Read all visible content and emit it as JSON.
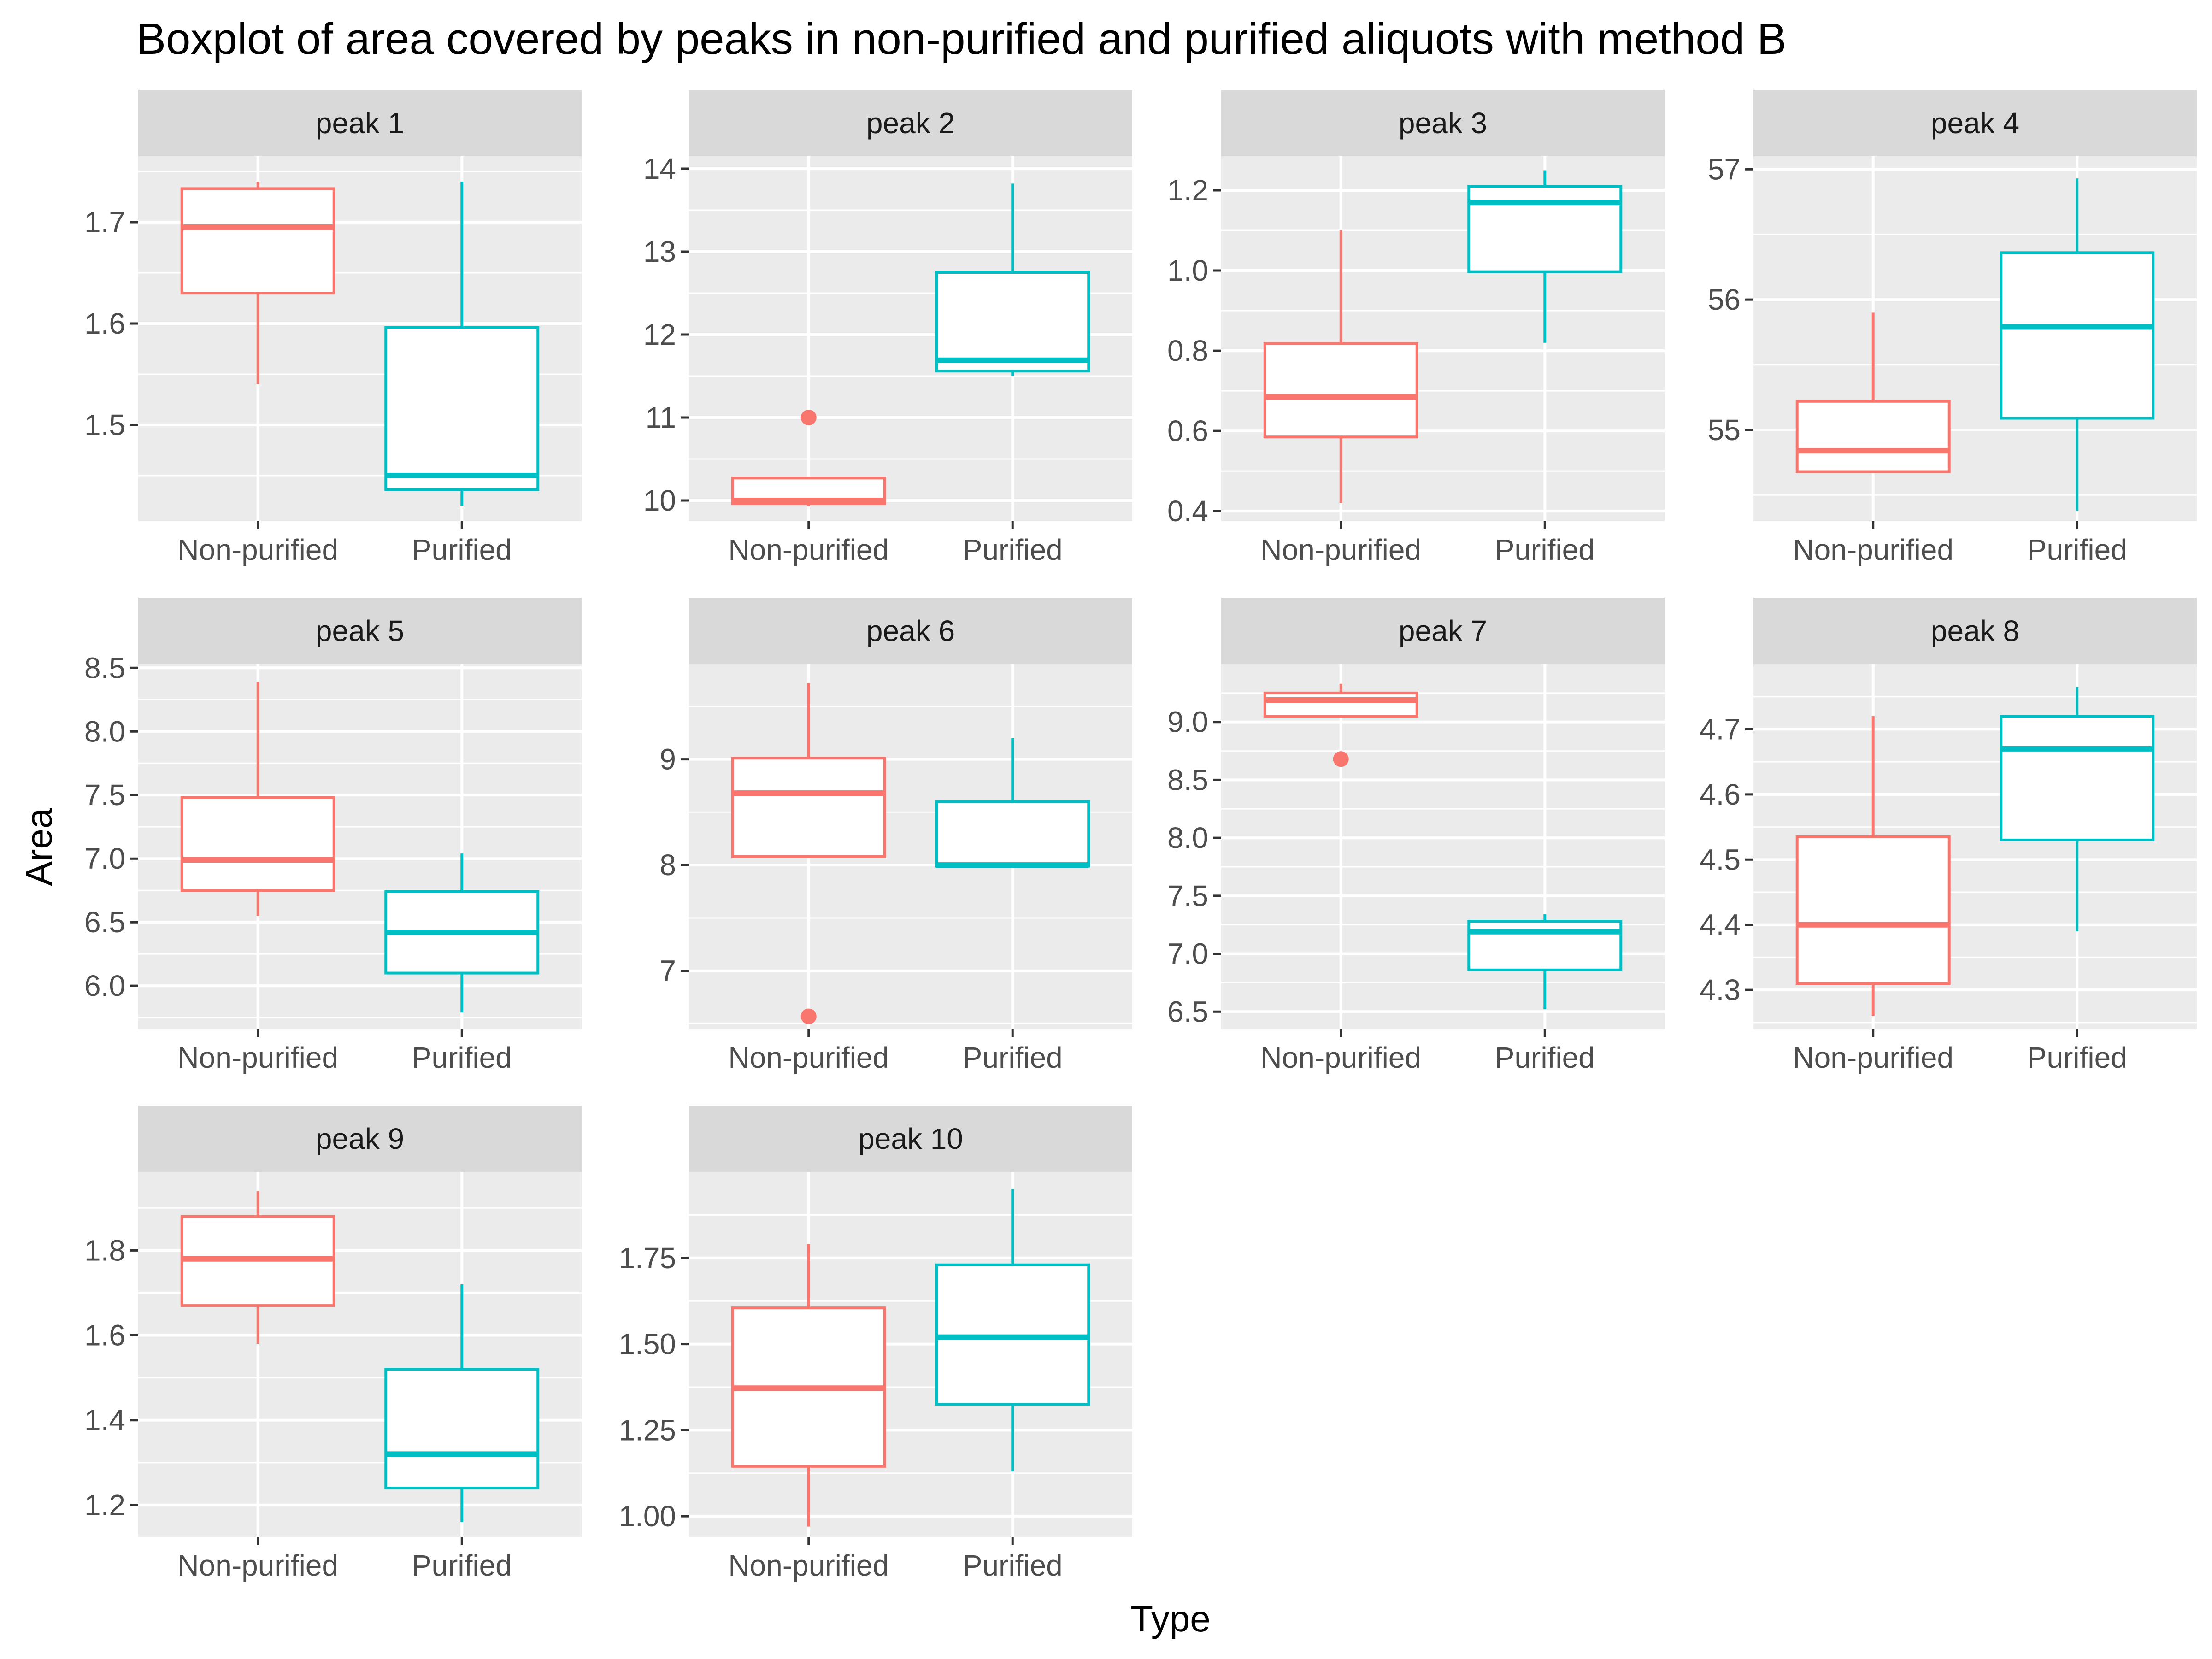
{
  "chart_data": {
    "type": "boxplot",
    "title": "Boxplot of area covered by peaks in non-purified and purified aliquots with method B",
    "xlabel": "Type",
    "ylabel": "Area",
    "categories": [
      "Non-purified",
      "Purified"
    ],
    "colors": {
      "Non-purified": "#F8766D",
      "Purified": "#00BFC4",
      "panel_bg": "#EBEBEB",
      "strip_bg": "#D9D9D9",
      "grid": "#FFFFFF"
    },
    "grid": true,
    "facets": [
      {
        "label": "peak 1",
        "ylim": [
          1.405,
          1.765
        ],
        "yticks": [
          1.5,
          1.6,
          1.7
        ],
        "boxes": [
          {
            "group": "Non-purified",
            "min": 1.54,
            "q1": 1.63,
            "median": 1.695,
            "q3": 1.733,
            "max": 1.74,
            "outliers": []
          },
          {
            "group": "Purified",
            "min": 1.42,
            "q1": 1.436,
            "median": 1.45,
            "q3": 1.596,
            "max": 1.74,
            "outliers": []
          }
        ]
      },
      {
        "label": "peak 2",
        "ylim": [
          9.75,
          14.15
        ],
        "yticks": [
          10,
          11,
          12,
          13,
          14
        ],
        "boxes": [
          {
            "group": "Non-purified",
            "min": 9.93,
            "q1": 9.96,
            "median": 10.0,
            "q3": 10.27,
            "max": 10.27,
            "outliers": [
              11.0
            ]
          },
          {
            "group": "Purified",
            "min": 11.5,
            "q1": 11.56,
            "median": 11.69,
            "q3": 12.75,
            "max": 13.82,
            "outliers": []
          }
        ]
      },
      {
        "label": "peak 3",
        "ylim": [
          0.375,
          1.285
        ],
        "yticks": [
          0.4,
          0.6,
          0.8,
          1.0,
          1.2
        ],
        "boxes": [
          {
            "group": "Non-purified",
            "min": 0.42,
            "q1": 0.585,
            "median": 0.685,
            "q3": 0.818,
            "max": 1.1,
            "outliers": []
          },
          {
            "group": "Purified",
            "min": 0.82,
            "q1": 0.997,
            "median": 1.17,
            "q3": 1.21,
            "max": 1.25,
            "outliers": []
          }
        ]
      },
      {
        "label": "peak 4",
        "ylim": [
          54.3,
          57.1
        ],
        "yticks": [
          55,
          56,
          57
        ],
        "boxes": [
          {
            "group": "Non-purified",
            "min": 54.68,
            "q1": 54.68,
            "median": 54.84,
            "q3": 55.22,
            "max": 55.9,
            "outliers": []
          },
          {
            "group": "Purified",
            "min": 54.38,
            "q1": 55.09,
            "median": 55.79,
            "q3": 56.36,
            "max": 56.93,
            "outliers": []
          }
        ]
      },
      {
        "label": "peak 5",
        "ylim": [
          5.66,
          8.53
        ],
        "yticks": [
          6.0,
          6.5,
          7.0,
          7.5,
          8.0,
          8.5
        ],
        "boxes": [
          {
            "group": "Non-purified",
            "min": 6.55,
            "q1": 6.75,
            "median": 6.99,
            "q3": 7.48,
            "max": 8.39,
            "outliers": []
          },
          {
            "group": "Purified",
            "min": 5.79,
            "q1": 6.1,
            "median": 6.42,
            "q3": 6.74,
            "max": 7.04,
            "outliers": []
          }
        ]
      },
      {
        "label": "peak 6",
        "ylim": [
          6.45,
          9.9
        ],
        "yticks": [
          7,
          8,
          9
        ],
        "boxes": [
          {
            "group": "Non-purified",
            "min": 8.08,
            "q1": 8.08,
            "median": 8.68,
            "q3": 9.01,
            "max": 9.72,
            "outliers": [
              6.57
            ]
          },
          {
            "group": "Purified",
            "min": 7.99,
            "q1": 7.99,
            "median": 8.0,
            "q3": 8.6,
            "max": 9.2,
            "outliers": []
          }
        ]
      },
      {
        "label": "peak 7",
        "ylim": [
          6.35,
          9.5
        ],
        "yticks": [
          6.5,
          7.0,
          7.5,
          8.0,
          8.5,
          9.0
        ],
        "boxes": [
          {
            "group": "Non-purified",
            "min": 9.05,
            "q1": 9.05,
            "median": 9.19,
            "q3": 9.25,
            "max": 9.33,
            "outliers": [
              8.68
            ]
          },
          {
            "group": "Purified",
            "min": 6.52,
            "q1": 6.86,
            "median": 7.19,
            "q3": 7.28,
            "max": 7.34,
            "outliers": []
          }
        ]
      },
      {
        "label": "peak 8",
        "ylim": [
          4.24,
          4.8
        ],
        "yticks": [
          4.3,
          4.4,
          4.5,
          4.6,
          4.7
        ],
        "boxes": [
          {
            "group": "Non-purified",
            "min": 4.26,
            "q1": 4.31,
            "median": 4.4,
            "q3": 4.535,
            "max": 4.72,
            "outliers": []
          },
          {
            "group": "Purified",
            "min": 4.39,
            "q1": 4.53,
            "median": 4.67,
            "q3": 4.72,
            "max": 4.765,
            "outliers": []
          }
        ]
      },
      {
        "label": "peak 9",
        "ylim": [
          1.125,
          1.985
        ],
        "yticks": [
          1.2,
          1.4,
          1.6,
          1.8
        ],
        "boxes": [
          {
            "group": "Non-purified",
            "min": 1.58,
            "q1": 1.67,
            "median": 1.78,
            "q3": 1.88,
            "max": 1.94,
            "outliers": []
          },
          {
            "group": "Purified",
            "min": 1.16,
            "q1": 1.24,
            "median": 1.32,
            "q3": 1.52,
            "max": 1.72,
            "outliers": []
          }
        ]
      },
      {
        "label": "peak 10",
        "ylim": [
          0.94,
          2.0
        ],
        "yticks": [
          1.0,
          1.25,
          1.5,
          1.75
        ],
        "boxes": [
          {
            "group": "Non-purified",
            "min": 0.97,
            "q1": 1.145,
            "median": 1.372,
            "q3": 1.605,
            "max": 1.79,
            "outliers": []
          },
          {
            "group": "Purified",
            "min": 1.13,
            "q1": 1.325,
            "median": 1.52,
            "q3": 1.73,
            "max": 1.95,
            "outliers": []
          }
        ]
      }
    ]
  }
}
